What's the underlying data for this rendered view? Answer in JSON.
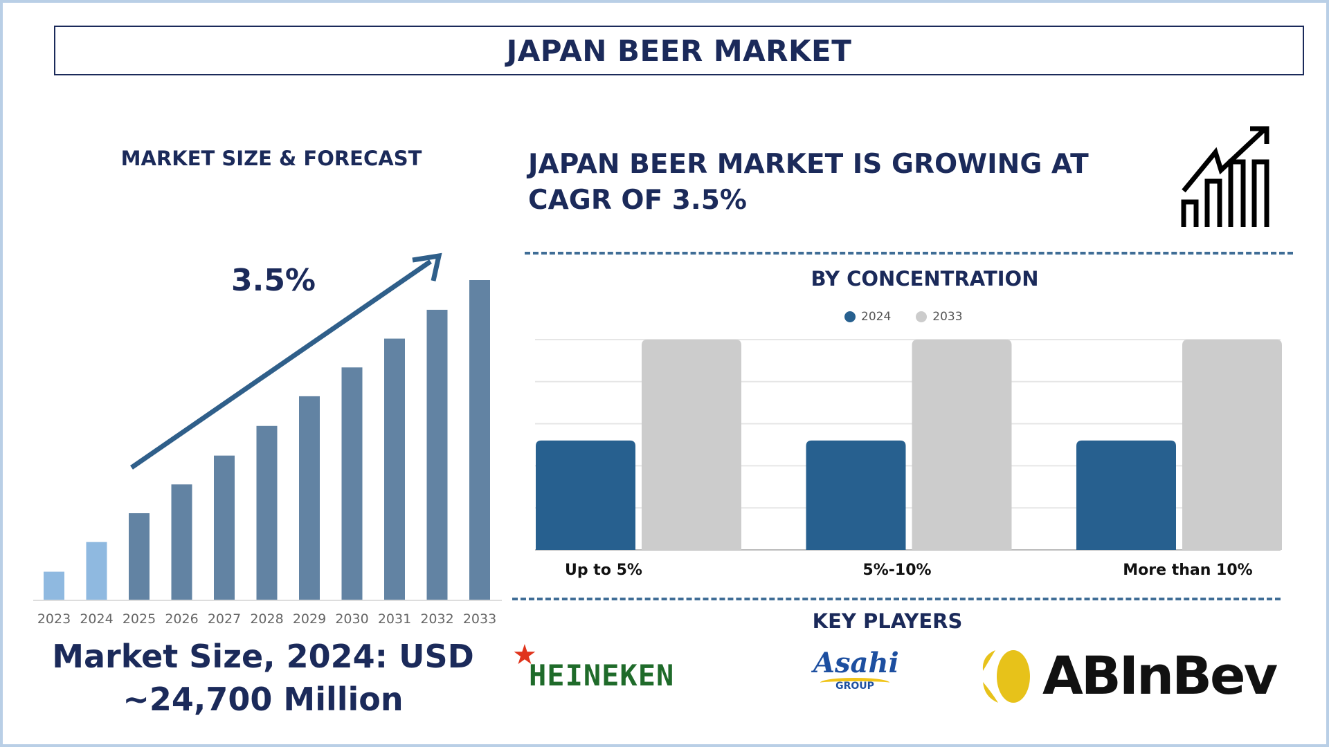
{
  "title": "JAPAN BEER MARKET",
  "left": {
    "heading": "MARKET SIZE & FORECAST",
    "cagr_label": "3.5%",
    "market_size_line1": "Market Size, 2024: USD",
    "market_size_line2": "~24,700 Million"
  },
  "right": {
    "growth_line1": "JAPAN BEER MARKET IS GROWING AT",
    "growth_line2": "CAGR OF 3.5%",
    "segment_heading": "BY CONCENTRATION",
    "key_players_heading": "KEY PLAYERS",
    "key_players": [
      "HEINEKEN",
      "Asahi",
      "GROUP",
      "ABInBev"
    ]
  },
  "colors": {
    "navy": "#1b2a5a",
    "bar_hist": "#8fb9e0",
    "bar_fc": "#6283a3",
    "s2024": "#27608f",
    "s2033": "#cccccc"
  },
  "chart_data": [
    {
      "type": "bar",
      "title": "MARKET SIZE & FORECAST",
      "categories": [
        "2023",
        "2024",
        "2025",
        "2026",
        "2027",
        "2028",
        "2029",
        "2030",
        "2031",
        "2032",
        "2033"
      ],
      "values": [
        33,
        68,
        102,
        136,
        170,
        205,
        240,
        274,
        308,
        342,
        377
      ],
      "value_note": "relative bar heights (unlabeled axis)",
      "annotation": "3.5%",
      "xlabel": "",
      "ylabel": "",
      "grid": false
    },
    {
      "type": "bar",
      "title": "BY CONCENTRATION",
      "categories": [
        "Up to 5%",
        "5%-10%",
        "More than 10%"
      ],
      "series": [
        {
          "name": "2024",
          "values": [
            2.6,
            2.6,
            2.6
          ]
        },
        {
          "name": "2033",
          "values": [
            5,
            5,
            5
          ]
        }
      ],
      "ylim": [
        0,
        5
      ],
      "grid": true,
      "legend": "top-center"
    }
  ]
}
